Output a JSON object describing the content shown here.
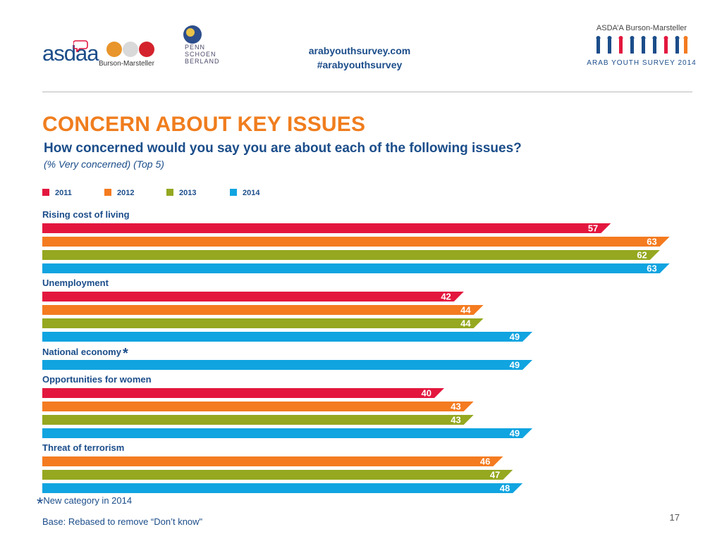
{
  "header": {
    "logo_text": "asdaa",
    "logo2_text": "Burson-Marsteller",
    "psb_lines": [
      "PENN",
      "SCHOEN",
      "BERLAND"
    ],
    "site_url": "arabyouthsurvey.com",
    "hashtag": "#arabyouthsurvey",
    "brand_top": "ASDA’A Burson-Marsteller",
    "brand_bottom": "ARAB YOUTH SURVEY 2014"
  },
  "title": "CONCERN ABOUT KEY ISSUES",
  "subtitle": "How concerned would you say you are about each of the following issues?",
  "note": "(% Very concerned) (Top 5)",
  "chart_data": {
    "type": "bar",
    "orientation": "horizontal",
    "xlim": [
      0,
      70
    ],
    "legend": [
      {
        "name": "2011",
        "color": "#e3173e"
      },
      {
        "name": "2012",
        "color": "#f47b20"
      },
      {
        "name": "2013",
        "color": "#95a820"
      },
      {
        "name": "2014",
        "color": "#10a4e0"
      }
    ],
    "categories": [
      {
        "label": "Rising cost of living",
        "asterisk": "",
        "bars": [
          {
            "series": "2011",
            "value": 57
          },
          {
            "series": "2012",
            "value": 63
          },
          {
            "series": "2013",
            "value": 62
          },
          {
            "series": "2014",
            "value": 63
          }
        ]
      },
      {
        "label": "Unemployment",
        "asterisk": "",
        "bars": [
          {
            "series": "2011",
            "value": 42
          },
          {
            "series": "2012",
            "value": 44
          },
          {
            "series": "2013",
            "value": 44
          },
          {
            "series": "2014",
            "value": 49
          }
        ]
      },
      {
        "label": "National economy",
        "asterisk": "*",
        "bars": [
          {
            "series": "2014",
            "value": 49
          }
        ]
      },
      {
        "label": "Opportunities for women",
        "asterisk": "",
        "bars": [
          {
            "series": "2011",
            "value": 40
          },
          {
            "series": "2012",
            "value": 43
          },
          {
            "series": "2013",
            "value": 43
          },
          {
            "series": "2014",
            "value": 49
          }
        ]
      },
      {
        "label": "Threat of terrorism",
        "asterisk": "",
        "bars": [
          {
            "series": "2012",
            "value": 46
          },
          {
            "series": "2013",
            "value": 47
          },
          {
            "series": "2014",
            "value": 48
          }
        ]
      }
    ]
  },
  "footer": {
    "asterisk": "*",
    "new_category_note": "New category in 2014",
    "base_note": "Base: Rebased to remove “Don’t know\"",
    "page_number": "17"
  }
}
